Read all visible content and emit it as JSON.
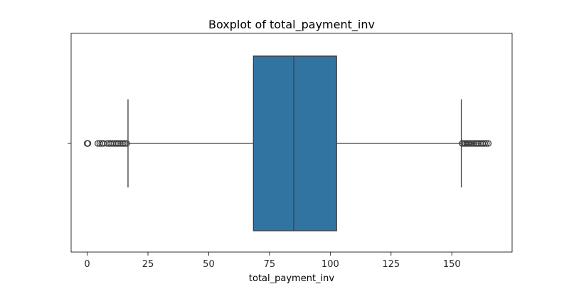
{
  "chart_data": {
    "type": "box",
    "title": "Boxplot of total_payment_inv",
    "xlabel": "total_payment_inv",
    "ylabel": "",
    "xlim": [
      -6.6,
      174.8
    ],
    "xticks": [
      0,
      25,
      50,
      75,
      100,
      125,
      150
    ],
    "xtick_labels": [
      "0",
      "25",
      "50",
      "75",
      "100",
      "125",
      "150"
    ],
    "box": {
      "whisker_low": 16.8,
      "q1": 68.4,
      "median": 85.0,
      "q3": 102.6,
      "whisker_high": 153.9
    },
    "outliers_low": [
      0.0,
      0.1,
      0.2,
      0.3,
      4.4,
      5.2,
      6.0,
      6.7,
      8.2,
      9.0,
      9.7,
      10.5,
      11.2,
      12.0,
      12.7,
      13.4,
      14.1,
      14.8,
      15.5,
      16.2
    ],
    "outliers_high": [
      154.3,
      154.9,
      155.5,
      156.1,
      156.7,
      157.3,
      157.9,
      158.5,
      159.2,
      159.9,
      160.6,
      161.3,
      162.0,
      162.7,
      163.5,
      164.2,
      165.0
    ],
    "grid": false,
    "colors": {
      "box_fill": "#3274a1",
      "line": "#3d3d3d",
      "frame": "#000000"
    }
  }
}
